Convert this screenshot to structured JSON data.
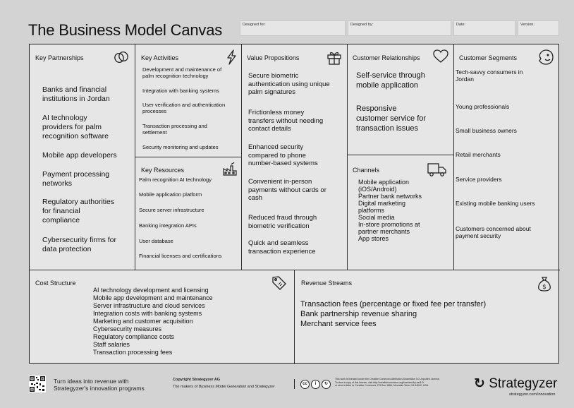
{
  "title": "The Business Model Canvas",
  "meta": {
    "designed_for": "Designed for:",
    "designed_by": "Designed by:",
    "date": "Date:",
    "version": "Version:"
  },
  "key_partnerships": {
    "title": "Key Partnerships",
    "icon": "link-icon",
    "items": [
      "Banks and financial\ninstitutions in Jordan",
      "AI technology\nproviders for palm\nrecognition software",
      "Mobile app developers",
      "Payment processing\nnetworks",
      "Regulatory authorities\nfor financial\ncompliance",
      "Cybersecurity firms for\ndata protection"
    ]
  },
  "key_activities": {
    "title": "Key Activities",
    "icon": "lightning-icon",
    "items": [
      "Development and maintenance of\npalm recognition technology",
      "Integration with banking systems",
      "User verification and authentication\nprocesses",
      "Transaction processing and\nsettlement",
      "Security monitoring and updates"
    ]
  },
  "key_resources": {
    "title": "Key Resources",
    "icon": "factory-icon",
    "items": [
      "Palm recognition AI technology",
      "Mobile application platform",
      "Secure server infrastructure",
      "Banking integration APIs",
      "User database",
      "Financial licenses and certifications"
    ]
  },
  "value_propositions": {
    "title": "Value Propositions",
    "icon": "gift-icon",
    "items": [
      "Secure biometric\nauthentication using unique\npalm signatures",
      "Frictionless money\ntransfers without needing\ncontact details",
      "Enhanced security\ncompared to phone\nnumber-based systems",
      "Convenient in-person\npayments without cards or\ncash",
      "Reduced fraud through\nbiometric verification",
      "Quick and seamless\ntransaction experience"
    ]
  },
  "customer_relationships": {
    "title": "Customer Relationships",
    "icon": "heart-icon",
    "items": [
      "Self-service through\nmobile application",
      "Responsive\ncustomer service for\ntransaction issues"
    ]
  },
  "channels": {
    "title": "Channels",
    "icon": "truck-icon",
    "items": [
      "Mobile application\n(iOS/Android)",
      "Partner bank networks",
      "Digital marketing\nplatforms",
      "Social media",
      "In-store promotions at\npartner merchants",
      "App stores"
    ]
  },
  "customer_segments": {
    "title": "Customer Segments",
    "icon": "smiley-icon",
    "items": [
      "Tech-savvy consumers in\nJordan",
      "Young professionals",
      "Small business owners",
      "Retail merchants",
      "Service providers",
      "Existing mobile banking users",
      "Customers concerned about\npayment security"
    ]
  },
  "cost_structure": {
    "title": "Cost Structure",
    "icon": "price-tag-icon",
    "items": [
      "AI technology development and licensing",
      "Mobile app development and maintenance",
      "Server infrastructure and cloud services",
      "Integration costs with banking systems",
      "Marketing and customer acquisition",
      "Cybersecurity measures",
      "Regulatory compliance costs",
      "Staff salaries",
      "Transaction processing fees"
    ]
  },
  "revenue_streams": {
    "title": "Revenue Streams",
    "icon": "money-bag-icon",
    "items": [
      "Transaction fees (percentage or fixed fee per transfer)",
      "Bank partnership revenue sharing",
      "Merchant service fees"
    ]
  },
  "footer": {
    "tagline": "Turn ideas into revenue with\nStrategyzer's innovation programs",
    "copyright_title": "Copyright Strategyzer AG",
    "copyright_line_start": "The makers of ",
    "copyright_italic": "Business Model Generation",
    "copyright_line_end": " and Strategyzer",
    "license_text": "This work is licensed under the Creative Commons Attribution-ShareAlike 3.0 Unported License.\nTo view a copy of this license, visit http://creativecommons.org/licenses/by-sa/3.0/\nor send a letter to Creative Commons, PO Box 1866, Mountain View, CA 94042, USA.",
    "brand": "Strategyzer",
    "brand_url": "strategyzer.com/innovation"
  }
}
